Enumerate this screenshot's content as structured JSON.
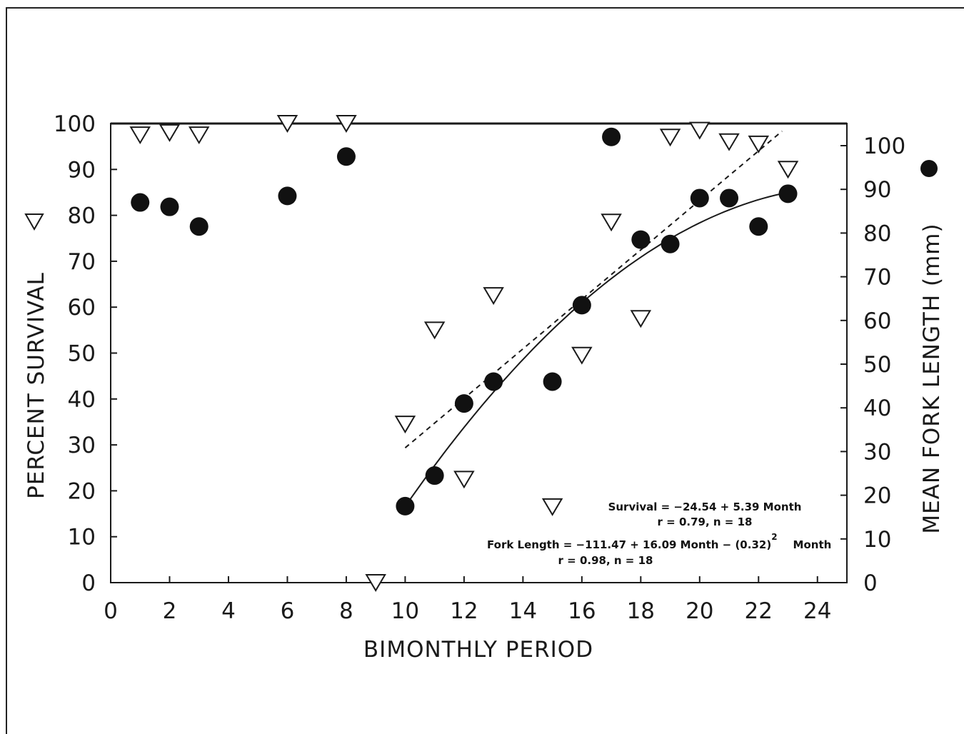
{
  "chart_data": {
    "type": "scatter",
    "xlabel": "BIMONTHLY PERIOD",
    "ylabel_left": "PERCENT SURVIVAL",
    "ylabel_right": "MEAN FORK LENGTH (mm)",
    "xlim": [
      0,
      25
    ],
    "ylim_left": [
      0,
      100
    ],
    "ylim_right": [
      0,
      100
    ],
    "xticks": [
      "0",
      "2",
      "4",
      "6",
      "8",
      "10",
      "12",
      "14",
      "16",
      "18",
      "20",
      "22",
      "24"
    ],
    "yticks_left": [
      "0",
      "10",
      "20",
      "30",
      "40",
      "50",
      "60",
      "70",
      "80",
      "90",
      "100"
    ],
    "yticks_right": [
      "0",
      "10",
      "20",
      "30",
      "40",
      "50",
      "60",
      "70",
      "80",
      "90",
      "100"
    ],
    "series": [
      {
        "name": "Percent survival",
        "marker": "open-triangle-down",
        "axis": "left",
        "points": [
          [
            1,
            97.5
          ],
          [
            2,
            98
          ],
          [
            3,
            97.5
          ],
          [
            6,
            100
          ],
          [
            8,
            100
          ],
          [
            9,
            0
          ],
          [
            10,
            34.5
          ],
          [
            11,
            55
          ],
          [
            12,
            22.5
          ],
          [
            13,
            62.5
          ],
          [
            15,
            16.5
          ],
          [
            16,
            49.5
          ],
          [
            17,
            78.5
          ],
          [
            18,
            57.5
          ],
          [
            19,
            97
          ],
          [
            20,
            98.5
          ],
          [
            21,
            96
          ],
          [
            22,
            95.5
          ],
          [
            23,
            90
          ]
        ]
      },
      {
        "name": "Mean fork length",
        "marker": "filled-circle",
        "axis": "right",
        "points": [
          [
            1,
            87
          ],
          [
            2,
            86
          ],
          [
            3,
            81.5
          ],
          [
            6,
            88.5
          ],
          [
            8,
            97.5
          ],
          [
            10,
            17.5
          ],
          [
            11,
            24.5
          ],
          [
            12,
            41
          ],
          [
            13,
            46
          ],
          [
            15,
            46
          ],
          [
            16,
            63.5
          ],
          [
            17,
            102
          ],
          [
            18,
            78.5
          ],
          [
            19,
            77.5
          ],
          [
            20,
            88
          ],
          [
            21,
            88
          ],
          [
            22,
            81.5
          ],
          [
            23,
            89
          ]
        ]
      }
    ],
    "fits": [
      {
        "name": "Survival fit",
        "style": "dashed",
        "axis": "left",
        "intercept": -24.54,
        "slope": 5.39,
        "x_range": [
          10,
          22.8
        ]
      },
      {
        "name": "Fork length fit",
        "style": "solid",
        "axis": "right",
        "intercept": -111.47,
        "linear": 16.09,
        "quadratic": -0.32,
        "x_range": [
          10,
          23
        ]
      }
    ],
    "annotations": {
      "survival_eq": "Survival = −24.54 + 5.39 Month",
      "survival_stats": "r = 0.79, n = 18",
      "fork_eq": "Fork Length = −111.47 + 16.09 Month − (0.32)",
      "fork_exp": "2",
      "fork_eq_tail": "Month",
      "fork_stats": "r = 0.98, n = 18"
    },
    "grid": false
  }
}
